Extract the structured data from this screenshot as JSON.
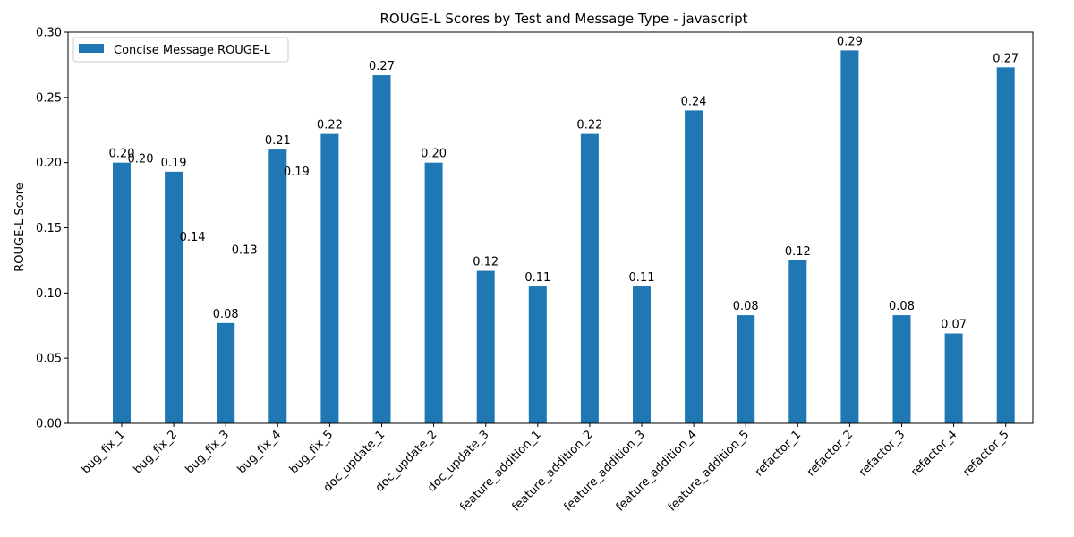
{
  "chart_data": {
    "type": "bar",
    "title": "ROUGE-L Scores by Test and Message Type - javascript",
    "xlabel": "",
    "ylabel": "ROUGE-L Score",
    "ylim": [
      0,
      0.3
    ],
    "yticks": [
      "0.00",
      "0.05",
      "0.10",
      "0.15",
      "0.20",
      "0.25",
      "0.30"
    ],
    "categories": [
      "bug_fix_1",
      "bug_fix_2",
      "bug_fix_3",
      "bug_fix_4",
      "bug_fix_5",
      "doc_update_1",
      "doc_update_2",
      "doc_update_3",
      "feature_addition_1",
      "feature_addition_2",
      "feature_addition_3",
      "feature_addition_4",
      "feature_addition_5",
      "refactor_1",
      "refactor_2",
      "refactor_3",
      "refactor_4",
      "refactor_5"
    ],
    "series": [
      {
        "name": "Concise Message ROUGE-L",
        "color": "#1f77b4",
        "values": [
          0.2,
          0.193,
          0.077,
          0.21,
          0.222,
          0.267,
          0.2,
          0.117,
          0.105,
          0.222,
          0.105,
          0.24,
          0.083,
          0.125,
          0.286,
          0.083,
          0.069,
          0.273
        ],
        "labels": [
          "0.20",
          "0.19",
          "0.08",
          "0.21",
          "0.22",
          "0.27",
          "0.20",
          "0.12",
          "0.11",
          "0.22",
          "0.11",
          "0.24",
          "0.08",
          "0.12",
          "0.29",
          "0.08",
          "0.07",
          "0.27"
        ]
      }
    ],
    "extra_labels": [
      {
        "category_index": 0,
        "value": 0.2,
        "text": "0.20"
      },
      {
        "category_index": 1,
        "value": 0.14,
        "text": "0.14"
      },
      {
        "category_index": 2,
        "value": 0.13,
        "text": "0.13"
      },
      {
        "category_index": 3,
        "value": 0.19,
        "text": "0.19"
      }
    ],
    "legend_position": "top-left",
    "grid": false
  }
}
